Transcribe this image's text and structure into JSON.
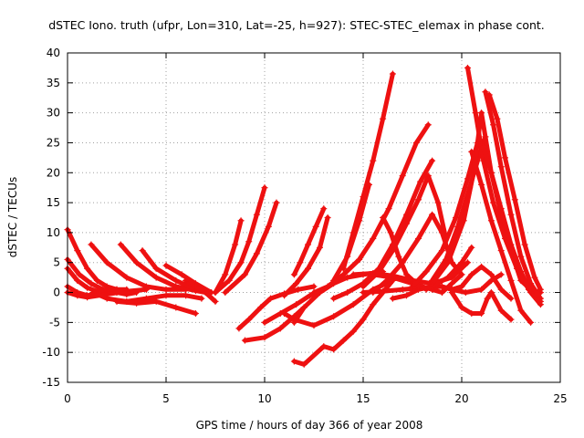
{
  "chart_data": {
    "type": "line",
    "title": "dSTEC Iono. truth (ufpr, Lon=310, Lat=-25, h=927): STEC-STEC_elemax in phase cont.",
    "xlabel": "GPS time / hours of day 366 of year 2008",
    "ylabel": "dSTEC  / TECUs",
    "xlim": [
      0,
      25
    ],
    "ylim": [
      -15,
      40
    ],
    "x_ticks": [
      "0",
      "5",
      "10",
      "15",
      "20",
      "25"
    ],
    "y_ticks": [
      "-15",
      "-10",
      "-5",
      "0",
      "5",
      "10",
      "15",
      "20",
      "25",
      "30",
      "35",
      "40"
    ],
    "grid": true,
    "legend": "none",
    "color": "#ee1111",
    "series": [
      {
        "x": [
          0.0,
          0.5,
          1.0,
          1.5,
          2.0,
          2.5,
          3.0
        ],
        "y": [
          10.5,
          7.0,
          4.0,
          2.0,
          1.0,
          0.5,
          0.5
        ]
      },
      {
        "x": [
          0.0,
          0.6,
          1.2,
          1.8,
          2.5,
          3.0,
          3.5
        ],
        "y": [
          5.5,
          3.0,
          1.5,
          0.5,
          0.0,
          -0.3,
          0.0
        ]
      },
      {
        "x": [
          0.0,
          0.5,
          1.0,
          1.5,
          2.0
        ],
        "y": [
          4.0,
          2.0,
          0.8,
          0.2,
          0.0
        ]
      },
      {
        "x": [
          0.0,
          0.5,
          1.0,
          1.5,
          2.0,
          2.5
        ],
        "y": [
          1.0,
          0.0,
          -0.5,
          -0.2,
          0.3,
          0.5
        ]
      },
      {
        "x": [
          0.0,
          0.5,
          1.0,
          2.0,
          3.0,
          4.0
        ],
        "y": [
          0.0,
          -0.5,
          -0.8,
          -0.3,
          0.2,
          0.5
        ]
      },
      {
        "x": [
          1.2,
          2.0,
          3.0,
          4.0,
          5.0,
          6.0
        ],
        "y": [
          8.0,
          5.0,
          2.5,
          1.0,
          0.5,
          0.5
        ]
      },
      {
        "x": [
          2.7,
          3.5,
          4.5,
          5.5,
          6.5,
          7.0
        ],
        "y": [
          8.0,
          5.0,
          2.5,
          1.0,
          0.3,
          0.0
        ]
      },
      {
        "x": [
          3.8,
          4.5,
          5.5,
          6.5,
          7.2
        ],
        "y": [
          7.0,
          4.0,
          2.0,
          0.5,
          0.0
        ]
      },
      {
        "x": [
          1.3,
          2.0,
          3.0,
          4.0,
          5.0,
          6.0,
          6.8
        ],
        "y": [
          0.0,
          -1.0,
          -1.5,
          -1.0,
          -0.5,
          -0.5,
          -1.0
        ]
      },
      {
        "x": [
          2.5,
          3.5,
          4.5,
          5.5,
          6.5
        ],
        "y": [
          -1.5,
          -1.8,
          -1.5,
          -2.5,
          -3.5
        ]
      },
      {
        "x": [
          5.0,
          5.8,
          6.5,
          7.3
        ],
        "y": [
          4.5,
          3.0,
          1.5,
          0.0
        ]
      },
      {
        "x": [
          6.0,
          6.5,
          7.0,
          7.5
        ],
        "y": [
          2.0,
          1.0,
          0.0,
          -1.5
        ]
      },
      {
        "x": [
          7.5,
          8.0,
          8.5,
          8.8
        ],
        "y": [
          0.0,
          3.0,
          8.0,
          12.0
        ]
      },
      {
        "x": [
          7.5,
          8.2,
          8.8,
          9.2,
          9.6,
          10.0
        ],
        "y": [
          0.0,
          2.0,
          5.0,
          8.5,
          13.0,
          17.5
        ]
      },
      {
        "x": [
          8.0,
          9.0,
          9.6,
          10.2,
          10.6
        ],
        "y": [
          0.0,
          3.0,
          6.5,
          11.0,
          15.0
        ]
      },
      {
        "x": [
          8.7,
          9.2,
          9.8,
          10.3,
          11.0,
          11.7,
          12.5
        ],
        "y": [
          -6.0,
          -4.5,
          -2.5,
          -1.0,
          -0.2,
          0.5,
          1.0
        ]
      },
      {
        "x": [
          9.0,
          10.0,
          10.8,
          11.5,
          12.0
        ],
        "y": [
          -8.0,
          -7.5,
          -6.0,
          -4.0,
          -2.5
        ]
      },
      {
        "x": [
          10.0,
          10.8,
          11.6,
          12.3,
          13.0
        ],
        "y": [
          -5.0,
          -3.5,
          -2.0,
          -0.5,
          0.5
        ]
      },
      {
        "x": [
          11.0,
          11.5,
          12.5,
          13.5,
          14.5,
          15.5,
          16.5
        ],
        "y": [
          -3.5,
          -4.5,
          -5.5,
          -4.0,
          -2.0,
          0.5,
          2.0
        ]
      },
      {
        "x": [
          11.5,
          12.0,
          12.8,
          13.5,
          14.2,
          15.0,
          16.0
        ],
        "y": [
          -5.0,
          -2.5,
          0.0,
          1.5,
          2.5,
          3.0,
          3.5
        ]
      },
      {
        "x": [
          11.5,
          11.8,
          12.2,
          12.6,
          13.0
        ],
        "y": [
          3.0,
          5.0,
          8.0,
          11.0,
          14.0
        ]
      },
      {
        "x": [
          11.0,
          11.6,
          12.2,
          12.8,
          13.2
        ],
        "y": [
          -0.5,
          1.5,
          4.0,
          7.5,
          12.5
        ]
      },
      {
        "x": [
          11.5,
          12.0,
          13.0,
          13.5,
          14.0,
          14.5,
          15.0,
          15.5,
          16.0,
          16.5
        ],
        "y": [
          -11.5,
          -12.0,
          -9.0,
          -9.5,
          -8.0,
          -6.5,
          -4.5,
          -2.0,
          0.0,
          2.0
        ]
      },
      {
        "x": [
          14.0,
          14.5,
          15.0,
          15.5,
          16.0,
          16.5
        ],
        "y": [
          4.0,
          10.0,
          16.0,
          22.0,
          29.0,
          36.5
        ]
      },
      {
        "x": [
          13.5,
          14.2,
          14.8,
          15.3
        ],
        "y": [
          2.0,
          6.0,
          12.0,
          18.0
        ]
      },
      {
        "x": [
          12.5,
          13.2,
          14.0,
          14.8,
          15.5,
          16.3,
          17.0,
          17.7,
          18.3
        ],
        "y": [
          0.0,
          1.0,
          3.0,
          5.5,
          9.0,
          14.0,
          19.5,
          25.0,
          28.0
        ]
      },
      {
        "x": [
          13.5,
          14.2,
          15.0,
          15.8,
          16.5,
          17.2,
          17.9,
          18.5
        ],
        "y": [
          -1.0,
          0.0,
          1.5,
          4.0,
          8.0,
          13.0,
          18.5,
          22.0
        ]
      },
      {
        "x": [
          15.0,
          15.8,
          16.5,
          17.2,
          17.8,
          18.3,
          18.8,
          19.2
        ],
        "y": [
          1.0,
          3.5,
          7.0,
          11.5,
          15.5,
          19.5,
          15.0,
          9.0
        ]
      },
      {
        "x": [
          15.5,
          16.2,
          17.0,
          17.8,
          18.5,
          19.0,
          19.5,
          20.0
        ],
        "y": [
          0.0,
          2.0,
          5.0,
          9.0,
          13.0,
          10.0,
          5.0,
          3.0
        ]
      },
      {
        "x": [
          16.0,
          16.4,
          16.8,
          17.2,
          17.7,
          18.2
        ],
        "y": [
          12.5,
          10.0,
          6.0,
          3.0,
          1.5,
          0.5
        ]
      },
      {
        "x": [
          15.0,
          16.0,
          17.0,
          18.0,
          19.0,
          19.5,
          20.2,
          21.0,
          21.5,
          22.0
        ],
        "y": [
          0.0,
          0.2,
          0.5,
          0.8,
          1.0,
          0.5,
          0.0,
          0.5,
          2.0,
          3.0
        ]
      },
      {
        "x": [
          15.5,
          16.5,
          17.5,
          18.5,
          19.0,
          19.5,
          20.0
        ],
        "y": [
          3.0,
          2.5,
          1.5,
          0.5,
          0.0,
          1.5,
          3.0
        ]
      },
      {
        "x": [
          14.5,
          15.5,
          16.5,
          17.5,
          18.5,
          19.5,
          20.3
        ],
        "y": [
          3.0,
          3.2,
          2.8,
          2.0,
          1.5,
          2.5,
          5.0
        ]
      },
      {
        "x": [
          16.5,
          17.2,
          17.8,
          18.5,
          19.3,
          20.0,
          20.5
        ],
        "y": [
          -1.0,
          -0.5,
          0.5,
          1.0,
          2.5,
          5.0,
          7.5
        ]
      },
      {
        "x": [
          17.5,
          18.2,
          19.0,
          19.7,
          20.3,
          20.8
        ],
        "y": [
          1.0,
          3.5,
          7.0,
          12.5,
          19.0,
          25.0
        ]
      },
      {
        "x": [
          18.5,
          19.2,
          19.8,
          20.4,
          20.9,
          21.2
        ],
        "y": [
          2.0,
          5.5,
          11.0,
          17.5,
          23.0,
          26.0
        ]
      },
      {
        "x": [
          18.5,
          19.3,
          20.1,
          20.6,
          21.0,
          21.5,
          22.0,
          22.5,
          23.0,
          23.5,
          24.0
        ],
        "y": [
          1.5,
          5.0,
          12.0,
          20.0,
          30.0,
          20.0,
          13.0,
          7.0,
          2.0,
          0.5,
          0.0
        ]
      },
      {
        "x": [
          20.3,
          20.7,
          21.1,
          21.6,
          22.2,
          22.8,
          23.4,
          24.0
        ],
        "y": [
          37.5,
          30.0,
          22.0,
          15.0,
          9.0,
          4.0,
          0.5,
          -1.5
        ]
      },
      {
        "x": [
          21.2,
          21.6,
          22.0,
          22.5,
          23.0,
          23.5,
          24.0
        ],
        "y": [
          33.5,
          28.0,
          21.0,
          13.0,
          6.0,
          1.5,
          -1.0
        ]
      },
      {
        "x": [
          21.4,
          21.8,
          22.2,
          22.7,
          23.2,
          23.7,
          24.0
        ],
        "y": [
          33.0,
          29.0,
          22.5,
          15.5,
          8.0,
          2.5,
          0.5
        ]
      },
      {
        "x": [
          21.0,
          21.5,
          22.0,
          22.5,
          23.0,
          23.5,
          24.0
        ],
        "y": [
          25.0,
          20.0,
          14.0,
          8.0,
          3.5,
          0.0,
          -2.0
        ]
      },
      {
        "x": [
          20.5,
          21.0,
          21.5,
          22.0,
          22.5,
          23.0,
          23.5
        ],
        "y": [
          23.5,
          18.0,
          12.0,
          7.0,
          2.0,
          -3.0,
          -5.0
        ]
      },
      {
        "x": [
          19.5,
          20.0,
          20.5,
          21.0,
          21.3,
          21.5,
          22.0,
          22.5
        ],
        "y": [
          0.0,
          -2.5,
          -3.5,
          -3.5,
          -1.0,
          0.0,
          -3.0,
          -4.5
        ]
      },
      {
        "x": [
          19.0,
          19.5,
          20.0,
          20.5,
          21.0,
          21.5,
          22.0,
          22.5
        ],
        "y": [
          1.0,
          0.5,
          1.0,
          3.0,
          4.3,
          3.0,
          0.5,
          -1.0
        ]
      }
    ]
  }
}
